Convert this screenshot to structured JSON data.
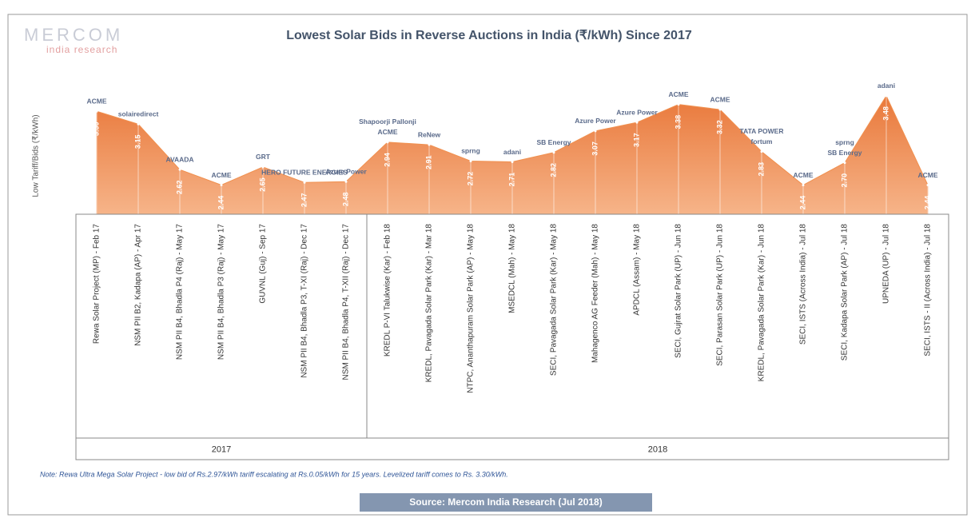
{
  "chart_data": {
    "type": "area",
    "title": "Lowest Solar Bids in Reverse Auctions in India (₹/kWh) Since 2017",
    "brand": "MERCOM",
    "brand_sub": "india research",
    "y_label": "Low Tariff/Bids (₹/kWh)",
    "categories": [
      "Rewa Solar Project (MP) - Feb 17",
      "NSM PII B2, Kadapa (AP) - Apr 17",
      "NSM PII B4, Bhadla P4 (Raj) - May 17",
      "NSM PII B4, Bhadla P3 (Raj) - May 17",
      "GUVNL (Guj) - Sep 17",
      "NSM PII B4, Bhadla P3, T-XI (Raj) - Dec 17",
      "NSM PII B4, Bhadla P4, T-XII (Raj) - Dec 17",
      "KREDL P-VI Talukwise (Kar) - Feb 18",
      "KREDL, Pavagada Solar Park (Kar) - Mar 18",
      "NTPC, Ananthapuram Solar Park (AP) - May 18",
      "MSEDCL (Mah) - May 18",
      "SECI, Pavagada Solar Park (Kar) - May 18",
      "Mahagenco AG Feeder (Mah) - May 18",
      "APDCL (Assam) - May 18",
      "SECI, Gujrat Solar Park (UP) - Jun 18",
      "SECI, Parasan Solar Park (UP) - Jun 18",
      "KREDL, Pavagada Solar Park (Kar) - Jun 18",
      "SECI, ISTS (Across India) - Jul 18",
      "SECI, Kadapa Solar Park (AP) - Jul 18",
      "UPNEDA (UP) - Jul 18",
      "SECI, ISTS - II (Across India) - Jul 18"
    ],
    "values": [
      3.3,
      3.15,
      2.62,
      2.44,
      2.65,
      2.47,
      2.48,
      2.94,
      2.91,
      2.72,
      2.71,
      2.82,
      3.07,
      3.17,
      3.38,
      3.32,
      2.83,
      2.44,
      2.7,
      3.48,
      2.44
    ],
    "value_labels": [
      "3.30",
      "3.15",
      "2.62",
      "2.44",
      "2.65",
      "2.47",
      "2.48",
      "2.94",
      "2.91",
      "2.72",
      "2.71",
      "2.82",
      "3.07",
      "3.17",
      "3.38",
      "3.32",
      "2.83",
      "2.44",
      "2.70",
      "3.48",
      "2.44"
    ],
    "winners": [
      [
        "ACME"
      ],
      [
        "solairedirect"
      ],
      [
        "AVAADA"
      ],
      [
        "ACME"
      ],
      [
        "GRT"
      ],
      [
        "HERO FUTURE ENERGIES"
      ],
      [
        "Azure Power"
      ],
      [
        "Shapoorji Pallonji",
        "ACME"
      ],
      [
        "ReNew"
      ],
      [
        "sprng"
      ],
      [
        "adani"
      ],
      [
        "SB Energy"
      ],
      [
        "Azure Power"
      ],
      [
        "Azure Power"
      ],
      [
        "ACME"
      ],
      [
        "ACME"
      ],
      [
        "TATA POWER",
        "fortum"
      ],
      [
        "ACME"
      ],
      [
        "sprng",
        "SB Energy"
      ],
      [
        "adani"
      ],
      [
        "ACME"
      ]
    ],
    "groups": [
      {
        "label": "2017",
        "from": 0,
        "to": 6
      },
      {
        "label": "2018",
        "from": 7,
        "to": 20
      }
    ],
    "ylim": [
      2.1,
      3.6
    ],
    "color": "#f0904f",
    "note": "Note: Rewa Ultra Mega Solar Project - low bid of Rs.2.97/kWh tariff escalating at Rs.0.05/kWh for 15 years. Levelized tariff comes to Rs. 3.30/kWh.",
    "source": "Source: Mercom India Research (Jul 2018)"
  }
}
